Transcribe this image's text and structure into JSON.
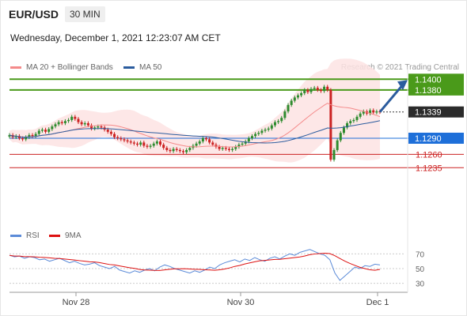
{
  "header": {
    "pair": "EUR/USD",
    "timeframe": "30 MIN",
    "datetime": "Wednesday, December 1, 2021 12:23:07 AM CET"
  },
  "legend": {
    "ma20_label": "MA 20 + Bollinger Bands",
    "ma50_label": "MA 50",
    "credit": "Research © 2021 Trading Central",
    "rsi_label": "RSI",
    "ma9_label": "9MA"
  },
  "colors": {
    "ma20": "#f48a8a",
    "ma50": "#2b5c9e",
    "bollinger_fill": "#fde3e3",
    "bull": "#2e8b2e",
    "bear": "#cc2222",
    "resistance": "#4a9a1a",
    "support": "#cc2222",
    "pivot": "#1e6fd9",
    "current": "#333333",
    "rsi": "#5b8bd8",
    "rsi_ma": "#dd1111"
  },
  "chart_data": {
    "type": "candlestick",
    "x_ticks": [
      "Nov 28",
      "Nov 30",
      "Dec 1"
    ],
    "ylim": [
      1.115,
      1.148
    ],
    "close": [
      1.1296,
      1.1292,
      1.1294,
      1.129,
      1.1288,
      1.1292,
      1.1296,
      1.1294,
      1.1298,
      1.1304,
      1.1306,
      1.1302,
      1.1307,
      1.1312,
      1.1316,
      1.132,
      1.1318,
      1.1322,
      1.1324,
      1.133,
      1.1326,
      1.132,
      1.1316,
      1.1318,
      1.1314,
      1.1308,
      1.131,
      1.1312,
      1.131,
      1.1306,
      1.1302,
      1.1298,
      1.1292,
      1.129,
      1.1288,
      1.1286,
      1.1284,
      1.1282,
      1.128,
      1.1278,
      1.1282,
      1.1276,
      1.1274,
      1.1276,
      1.128,
      1.1284,
      1.1278,
      1.1272,
      1.1268,
      1.1266,
      1.127,
      1.1268,
      1.1266,
      1.1264,
      1.1268,
      1.1272,
      1.1276,
      1.128,
      1.1284,
      1.129,
      1.1288,
      1.1282,
      1.1278,
      1.1274,
      1.127,
      1.1272,
      1.127,
      1.1268,
      1.127,
      1.1274,
      1.1278,
      1.128,
      1.1284,
      1.129,
      1.1294,
      1.1298,
      1.13,
      1.1304,
      1.1306,
      1.1308,
      1.1314,
      1.132,
      1.1322,
      1.1328,
      1.134,
      1.1352,
      1.136,
      1.1366,
      1.137,
      1.1374,
      1.138,
      1.1376,
      1.1382,
      1.1384,
      1.138,
      1.1378,
      1.1386,
      1.138,
      1.125,
      1.1268,
      1.1286,
      1.13,
      1.131,
      1.1318,
      1.1322,
      1.1324,
      1.133,
      1.1336,
      1.134,
      1.1336,
      1.1342,
      1.1338,
      1.134,
      1.1339
    ],
    "levels": [
      {
        "label": "1.1400",
        "value": 1.14,
        "kind": "resistance"
      },
      {
        "label": "1.1380",
        "value": 1.138,
        "kind": "resistance"
      },
      {
        "label": "1.1339",
        "value": 1.1339,
        "kind": "current"
      },
      {
        "label": "1.1290",
        "value": 1.129,
        "kind": "pivot"
      },
      {
        "label": "1.1260",
        "value": 1.126,
        "kind": "support"
      },
      {
        "label": "1.1235",
        "value": 1.1235,
        "kind": "support"
      }
    ],
    "rsi": {
      "ticks": [
        70,
        50,
        30
      ],
      "ylim": [
        20,
        80
      ],
      "values": [
        68,
        66,
        67,
        64,
        66,
        65,
        62,
        63,
        60,
        62,
        64,
        61,
        58,
        60,
        57,
        55,
        56,
        58,
        54,
        52,
        50,
        53,
        48,
        46,
        44,
        47,
        45,
        48,
        50,
        47,
        52,
        55,
        53,
        50,
        48,
        46,
        44,
        47,
        45,
        48,
        52,
        50,
        55,
        58,
        60,
        62,
        59,
        63,
        61,
        65,
        62,
        60,
        64,
        66,
        63,
        67,
        70,
        68,
        72,
        74,
        76,
        73,
        70,
        68,
        62,
        44,
        34,
        40,
        46,
        52,
        50,
        54,
        53,
        56,
        55
      ]
    }
  }
}
